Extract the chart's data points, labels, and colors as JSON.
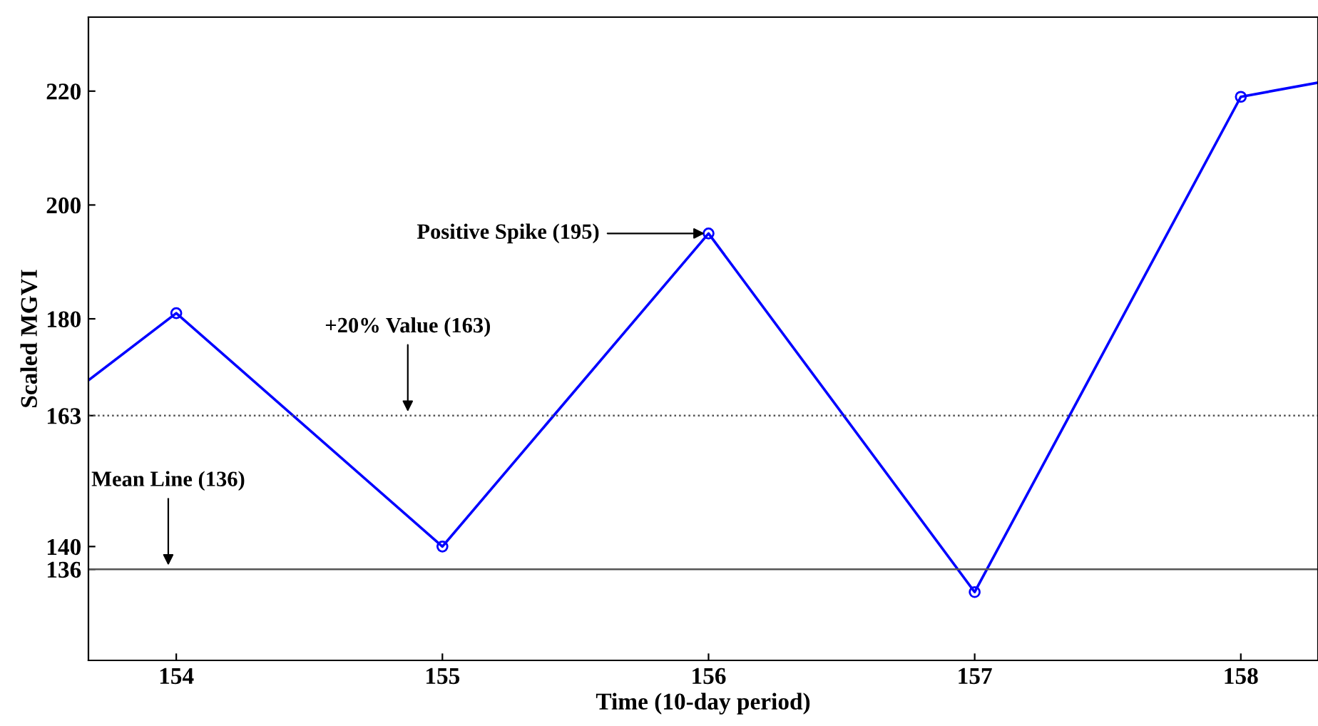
{
  "chart_data": {
    "type": "line",
    "xlabel": "Time (10-day period)",
    "ylabel": "Scaled MGVI",
    "x": [
      153.67,
      154,
      155,
      156,
      157,
      158,
      158.29
    ],
    "series": [
      {
        "color": "#0000ff",
        "values": [
          169.2,
          181,
          140,
          195,
          132,
          219,
          221.5
        ]
      }
    ],
    "marker": "circle",
    "line_style": "solid",
    "xlim": [
      153.67,
      158.29
    ],
    "xticks": [
      154,
      155,
      156,
      157,
      158
    ],
    "ylim": [
      120,
      233
    ],
    "yticks": [
      136,
      140,
      163,
      180,
      200,
      220
    ],
    "ref_lines": [
      {
        "axis": "y",
        "value": 163,
        "color": "#555555",
        "line_style": "dotted"
      },
      {
        "axis": "y",
        "value": 136,
        "color": "#555555",
        "line_style": "solid"
      }
    ],
    "annotations": [
      {
        "text": "Positive Spike (195)",
        "x": 156,
        "y": 195
      },
      {
        "text": "+20% Value (163)",
        "x": 154.87,
        "y": 163
      },
      {
        "text": "Mean Line (136)",
        "x": 153.97,
        "y": 136
      }
    ],
    "grid": false,
    "legend": false
  }
}
